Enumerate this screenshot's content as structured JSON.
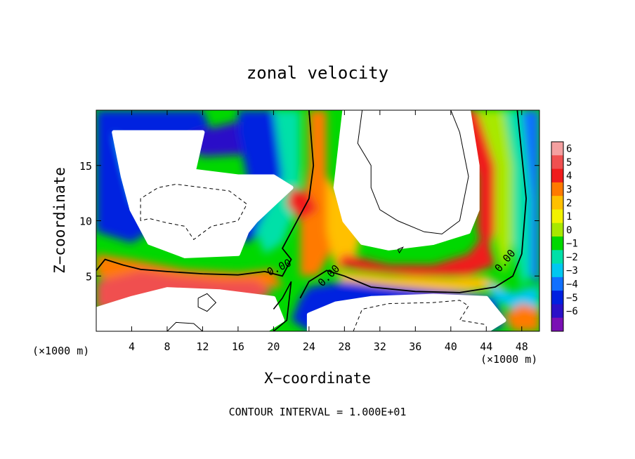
{
  "chart_data": {
    "type": "heatmap",
    "title": "zonal velocity",
    "xlabel": "X−coordinate",
    "ylabel": "Z−coordinate",
    "x_unit_left": "(×1000 m)",
    "x_unit_right": "(×1000 m)",
    "footer": "CONTOUR INTERVAL = 1.000E+01",
    "xlim": [
      0,
      50
    ],
    "ylim": [
      0,
      20
    ],
    "x_ticks": [
      4,
      8,
      12,
      16,
      20,
      24,
      28,
      32,
      36,
      40,
      44,
      48
    ],
    "x_tick_labels": [
      "4",
      "8",
      "12",
      "16",
      "20",
      "24",
      "28",
      "32",
      "36",
      "40",
      "44",
      "48"
    ],
    "y_ticks": [
      5,
      10,
      15
    ],
    "y_tick_labels": [
      "5",
      "10",
      "15"
    ],
    "colorbar": {
      "levels": [
        6,
        5,
        4,
        3,
        2,
        1,
        0,
        -1,
        -2,
        -3,
        -4,
        -5,
        -6
      ],
      "labels": [
        "6",
        "5",
        "4",
        "3",
        "2",
        "1",
        "0",
        "−1",
        "−2",
        "−3",
        "−4",
        "−5",
        "−6"
      ],
      "colors": [
        "#f4a0a0",
        "#f05050",
        "#f01c1c",
        "#ff7a00",
        "#ffc000",
        "#f2f200",
        "#a8e800",
        "#00d800",
        "#00e0a8",
        "#00c8f0",
        "#1070ff",
        "#0020e0",
        "#2a10c8",
        "#7a10b4"
      ]
    },
    "contour_labels": [
      {
        "text": "0.00",
        "x": 19.5,
        "y": 5.0,
        "angle": -25
      },
      {
        "text": "0.00",
        "x": 25.5,
        "y": 4.0,
        "angle": -45
      },
      {
        "text": "0.00",
        "x": 45.5,
        "y": 5.3,
        "angle": -50
      }
    ],
    "field_regions": [
      {
        "name": "upper-left-white",
        "value": 7,
        "shape": [
          [
            2,
            18
          ],
          [
            12,
            18
          ],
          [
            11,
            14.5
          ],
          [
            16,
            14
          ],
          [
            20,
            14
          ],
          [
            22,
            13
          ],
          [
            18,
            10
          ],
          [
            17,
            9
          ],
          [
            16,
            7
          ],
          [
            10,
            6.8
          ],
          [
            6,
            8
          ],
          [
            4,
            11
          ],
          [
            3,
            14
          ]
        ]
      },
      {
        "name": "upper-right-white",
        "value": 7,
        "shape": [
          [
            28,
            20
          ],
          [
            42,
            20
          ],
          [
            43,
            15
          ],
          [
            43,
            11
          ],
          [
            42,
            9
          ],
          [
            38,
            8
          ],
          [
            33,
            7.5
          ],
          [
            30,
            8
          ],
          [
            28,
            10
          ],
          [
            27,
            13
          ]
        ]
      },
      {
        "name": "bottom-left-white",
        "value": 7,
        "shape": [
          [
            0,
            2
          ],
          [
            4,
            3
          ],
          [
            8,
            3.8
          ],
          [
            14,
            3.6
          ],
          [
            20,
            3
          ],
          [
            21,
            1
          ],
          [
            19,
            0
          ],
          [
            0,
            0
          ]
        ]
      },
      {
        "name": "bottom-right-white",
        "value": 7,
        "shape": [
          [
            24,
            0
          ],
          [
            44,
            0
          ],
          [
            46,
            1
          ],
          [
            44,
            3
          ],
          [
            38,
            3.2
          ],
          [
            31,
            3
          ],
          [
            27,
            2.5
          ],
          [
            24,
            1.5
          ]
        ]
      }
    ]
  }
}
